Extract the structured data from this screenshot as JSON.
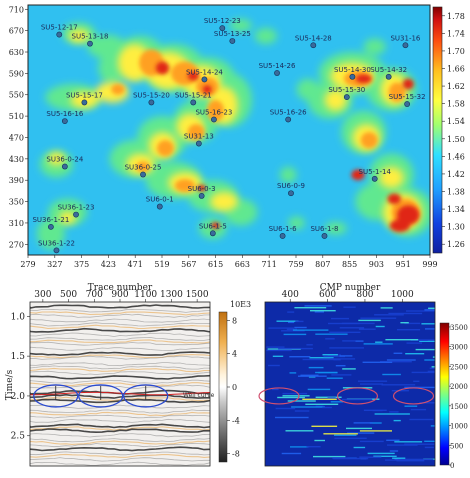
{
  "chart_data": [
    {
      "type": "heatmap",
      "x_ticks": [
        "279",
        "327",
        "375",
        "423",
        "471",
        "519",
        "567",
        "615",
        "663",
        "711",
        "759",
        "807",
        "855",
        "903",
        "951",
        "999"
      ],
      "y_ticks": [
        "710",
        "670",
        "630",
        "590",
        "550",
        "510",
        "470",
        "430",
        "390",
        "350",
        "310",
        "270"
      ],
      "xlim": [
        279,
        999
      ],
      "ylim": [
        250,
        718
      ],
      "colorbar": {
        "ticks": [
          "1.78",
          "1.74",
          "1.70",
          "1.66",
          "1.62",
          "1.58",
          "1.54",
          "1.50",
          "1.46",
          "1.42",
          "1.38",
          "1.34",
          "1.30",
          "1.26"
        ],
        "range": [
          1.24,
          1.8
        ]
      },
      "wells": [
        {
          "name": "SU5-12-17",
          "x": 335,
          "y": 672
        },
        {
          "name": "SU5-13-18",
          "x": 390,
          "y": 655
        },
        {
          "name": "SU5-12-23",
          "x": 627,
          "y": 684
        },
        {
          "name": "SU5-13-25",
          "x": 645,
          "y": 660
        },
        {
          "name": "SU5-14-28",
          "x": 790,
          "y": 652
        },
        {
          "name": "SU31-16",
          "x": 955,
          "y": 652
        },
        {
          "name": "SU5-14-26",
          "x": 725,
          "y": 600
        },
        {
          "name": "SU5-14-24",
          "x": 595,
          "y": 588
        },
        {
          "name": "SU5-14-30",
          "x": 860,
          "y": 593
        },
        {
          "name": "SU5-14-32",
          "x": 925,
          "y": 593
        },
        {
          "name": "SU5-15-17",
          "x": 380,
          "y": 545
        },
        {
          "name": "SU5-15-20",
          "x": 500,
          "y": 545
        },
        {
          "name": "SU5-15-21",
          "x": 575,
          "y": 545
        },
        {
          "name": "SU5-15-30",
          "x": 850,
          "y": 555
        },
        {
          "name": "SU5-15-32",
          "x": 958,
          "y": 542
        },
        {
          "name": "SU5-16-16",
          "x": 345,
          "y": 510
        },
        {
          "name": "SU5-16-23",
          "x": 612,
          "y": 513
        },
        {
          "name": "SU5-16-26",
          "x": 745,
          "y": 513
        },
        {
          "name": "SU31-13",
          "x": 585,
          "y": 468
        },
        {
          "name": "SU36-0-24",
          "x": 345,
          "y": 425
        },
        {
          "name": "SU36-0-25",
          "x": 485,
          "y": 410
        },
        {
          "name": "SU5-1-14",
          "x": 900,
          "y": 402
        },
        {
          "name": "SU6-0-1",
          "x": 515,
          "y": 350
        },
        {
          "name": "SU6-0-3",
          "x": 590,
          "y": 370
        },
        {
          "name": "SU6-0-9",
          "x": 750,
          "y": 375
        },
        {
          "name": "SU36-1-23",
          "x": 365,
          "y": 335
        },
        {
          "name": "SU36-1-21",
          "x": 320,
          "y": 312
        },
        {
          "name": "SU6-1-5",
          "x": 610,
          "y": 300
        },
        {
          "name": "SU6-1-6",
          "x": 735,
          "y": 295
        },
        {
          "name": "SU6-1-8",
          "x": 810,
          "y": 295
        },
        {
          "name": "SU36-1-22",
          "x": 330,
          "y": 268
        }
      ]
    },
    {
      "type": "heatmap",
      "title": "Trace number",
      "ylabel": "Time/s",
      "x_ticks": [
        "300",
        "500",
        "700",
        "900",
        "1100",
        "1300",
        "1500"
      ],
      "y_ticks": [
        "1.0",
        "1.5",
        "2.0",
        "2.5"
      ],
      "xlim": [
        200,
        1600
      ],
      "ylim": [
        0.82,
        2.88
      ],
      "colorbar": {
        "unit": "10E3",
        "ticks": [
          "8",
          "4",
          "0",
          "-4",
          "-8"
        ],
        "range": [
          -9,
          9
        ]
      },
      "annotation": "Well curve",
      "highlights": [
        {
          "x": 400,
          "y": 2.0
        },
        {
          "x": 750,
          "y": 2.0
        },
        {
          "x": 1100,
          "y": 2.0
        }
      ]
    },
    {
      "type": "heatmap",
      "title": "CMP number",
      "x_ticks": [
        "400",
        "600",
        "800",
        "1000"
      ],
      "xlim": [
        265,
        1175
      ],
      "ylim": [
        0.82,
        2.88
      ],
      "colorbar": {
        "ticks": [
          "3500",
          "3000",
          "2500",
          "2000",
          "1500",
          "1000",
          "500",
          "0"
        ],
        "range": [
          0,
          3600
        ]
      },
      "highlights": [
        {
          "x": 340,
          "y": 2.0
        },
        {
          "x": 760,
          "y": 2.0
        },
        {
          "x": 1060,
          "y": 2.0
        }
      ]
    }
  ]
}
